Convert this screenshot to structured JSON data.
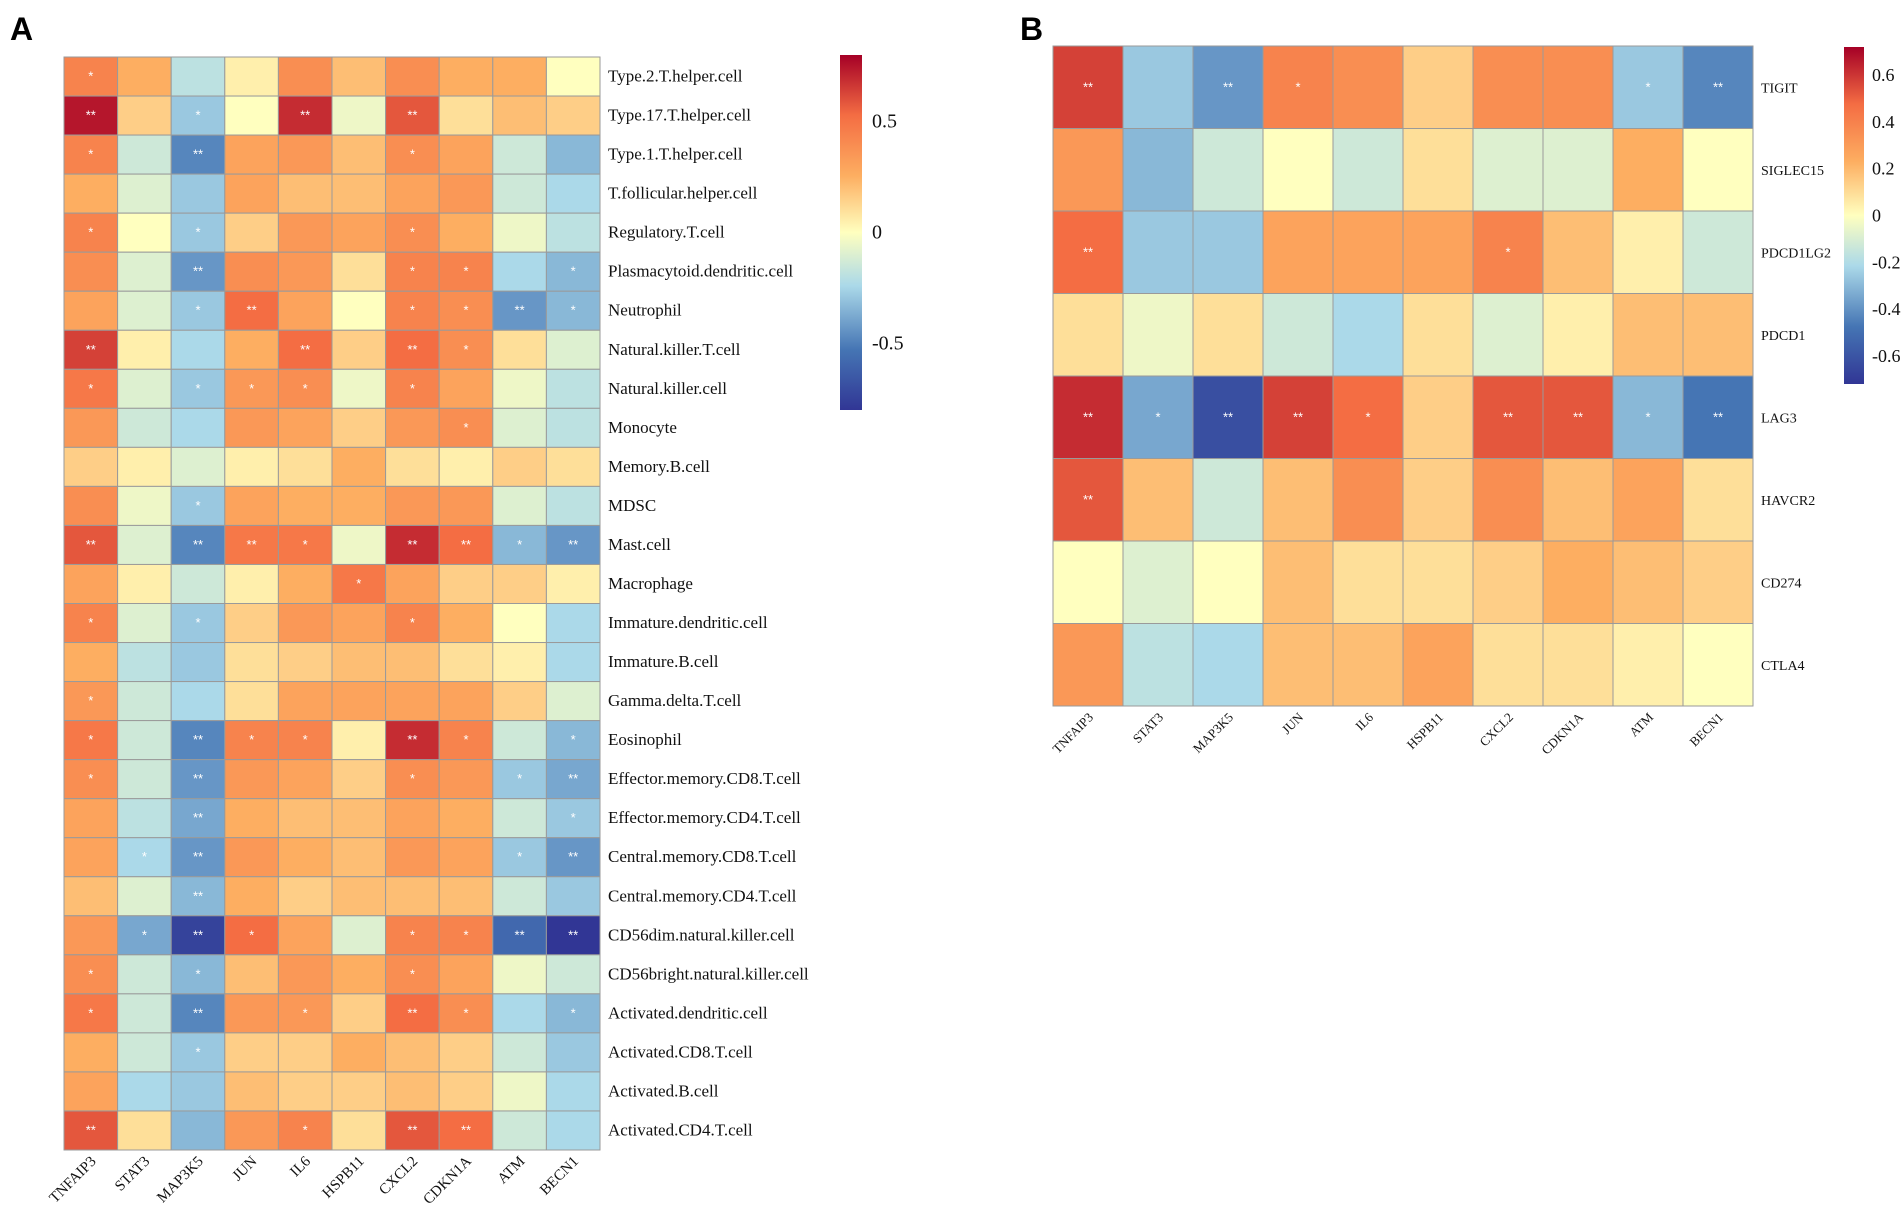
{
  "chart_data": [
    {
      "panel": "A",
      "type": "heatmap",
      "columns": [
        "TNFAIP3",
        "STAT3",
        "MAP3K5",
        "JUN",
        "IL6",
        "HSPB11",
        "CXCL2",
        "CDKN1A",
        "ATM",
        "BECN1"
      ],
      "rows": [
        "Type.2.T.helper.cell",
        "Type.17.T.helper.cell",
        "Type.1.T.helper.cell",
        "T.follicular.helper.cell",
        "Regulatory.T.cell",
        "Plasmacytoid.dendritic.cell",
        "Neutrophil",
        "Natural.killer.T.cell",
        "Natural.killer.cell",
        "Monocyte",
        "Memory.B.cell",
        "MDSC",
        "Mast.cell",
        "Macrophage",
        "Immature.dendritic.cell",
        "Immature.B.cell",
        "Gamma.delta.T.cell",
        "Eosinophil",
        "Effector.memory.CD8.T.cell",
        "Effector.memory.CD4.T.cell",
        "Central.memory.CD8.T.cell",
        "Central.memory.CD4.T.cell",
        "CD56dim.natural.killer.cell",
        "CD56bright.natural.killer.cell",
        "Activated.dendritic.cell",
        "Activated.CD8.T.cell",
        "Activated.B.cell",
        "Activated.CD4.T.cell"
      ],
      "values": [
        [
          0.45,
          0.25,
          -0.2,
          0.05,
          0.4,
          0.2,
          0.4,
          0.25,
          0.25,
          0.0
        ],
        [
          0.75,
          0.15,
          -0.3,
          0.0,
          0.7,
          -0.05,
          0.6,
          0.1,
          0.2,
          0.15
        ],
        [
          0.45,
          -0.15,
          -0.5,
          0.3,
          0.35,
          0.2,
          0.4,
          0.3,
          -0.15,
          -0.35
        ],
        [
          0.25,
          -0.1,
          -0.3,
          0.3,
          0.2,
          0.2,
          0.3,
          0.35,
          -0.15,
          -0.25
        ],
        [
          0.45,
          0.0,
          -0.3,
          0.15,
          0.35,
          0.3,
          0.4,
          0.25,
          -0.05,
          -0.2
        ],
        [
          0.4,
          -0.1,
          -0.45,
          0.4,
          0.35,
          0.1,
          0.45,
          0.45,
          -0.25,
          -0.35
        ],
        [
          0.3,
          -0.1,
          -0.3,
          0.55,
          0.3,
          0.0,
          0.45,
          0.4,
          -0.45,
          -0.35
        ],
        [
          0.65,
          0.05,
          -0.25,
          0.25,
          0.55,
          0.15,
          0.55,
          0.4,
          0.1,
          -0.1
        ],
        [
          0.5,
          -0.1,
          -0.3,
          0.35,
          0.4,
          -0.05,
          0.45,
          0.3,
          -0.05,
          -0.2
        ],
        [
          0.35,
          -0.15,
          -0.25,
          0.35,
          0.3,
          0.15,
          0.35,
          0.4,
          -0.1,
          -0.2
        ],
        [
          0.15,
          0.05,
          -0.1,
          0.05,
          0.1,
          0.25,
          0.1,
          0.05,
          0.15,
          0.1
        ],
        [
          0.4,
          -0.05,
          -0.3,
          0.3,
          0.25,
          0.25,
          0.35,
          0.35,
          -0.1,
          -0.2
        ],
        [
          0.6,
          -0.1,
          -0.5,
          0.5,
          0.5,
          -0.05,
          0.7,
          0.55,
          -0.35,
          -0.45
        ],
        [
          0.3,
          0.05,
          -0.15,
          0.05,
          0.25,
          0.5,
          0.3,
          0.15,
          0.15,
          0.05
        ],
        [
          0.45,
          -0.1,
          -0.3,
          0.15,
          0.35,
          0.3,
          0.45,
          0.25,
          0.0,
          -0.25
        ],
        [
          0.25,
          -0.2,
          -0.3,
          0.1,
          0.15,
          0.2,
          0.2,
          0.1,
          0.05,
          -0.25
        ],
        [
          0.35,
          -0.15,
          -0.25,
          0.1,
          0.3,
          0.3,
          0.3,
          0.3,
          0.15,
          -0.1
        ],
        [
          0.5,
          -0.15,
          -0.5,
          0.45,
          0.45,
          0.05,
          0.7,
          0.45,
          -0.15,
          -0.35
        ],
        [
          0.4,
          -0.15,
          -0.45,
          0.35,
          0.3,
          0.15,
          0.4,
          0.35,
          -0.3,
          -0.4
        ],
        [
          0.3,
          -0.2,
          -0.4,
          0.25,
          0.2,
          0.2,
          0.3,
          0.25,
          -0.15,
          -0.3
        ],
        [
          0.3,
          -0.25,
          -0.45,
          0.35,
          0.25,
          0.2,
          0.35,
          0.3,
          -0.3,
          -0.45
        ],
        [
          0.2,
          -0.1,
          -0.35,
          0.25,
          0.15,
          0.2,
          0.2,
          0.2,
          -0.15,
          -0.3
        ],
        [
          0.35,
          -0.4,
          -0.75,
          0.55,
          0.3,
          -0.1,
          0.45,
          0.45,
          -0.6,
          -0.8
        ],
        [
          0.4,
          -0.15,
          -0.35,
          0.2,
          0.35,
          0.25,
          0.4,
          0.3,
          -0.05,
          -0.15
        ],
        [
          0.5,
          -0.15,
          -0.5,
          0.35,
          0.35,
          0.15,
          0.55,
          0.4,
          -0.25,
          -0.35
        ],
        [
          0.25,
          -0.15,
          -0.3,
          0.15,
          0.15,
          0.25,
          0.2,
          0.15,
          -0.15,
          -0.3
        ],
        [
          0.3,
          -0.25,
          -0.3,
          0.2,
          0.15,
          0.15,
          0.2,
          0.15,
          -0.05,
          -0.25
        ],
        [
          0.6,
          0.1,
          -0.35,
          0.35,
          0.45,
          0.1,
          0.6,
          0.55,
          -0.15,
          -0.25
        ]
      ],
      "significance": [
        [
          "*",
          "",
          "",
          "",
          "",
          "",
          "",
          "",
          "",
          ""
        ],
        [
          "**",
          "",
          "*",
          "",
          "**",
          "",
          "**",
          "",
          "",
          ""
        ],
        [
          "*",
          "",
          "**",
          "",
          "",
          "",
          "*",
          "",
          "",
          ""
        ],
        [
          "",
          "",
          "",
          "",
          "",
          "",
          "",
          "",
          "",
          ""
        ],
        [
          "*",
          "",
          "*",
          "",
          "",
          "",
          "*",
          "",
          "",
          ""
        ],
        [
          "",
          "",
          "**",
          "",
          "",
          "",
          "*",
          "*",
          "",
          "*"
        ],
        [
          "",
          "",
          "*",
          "**",
          "",
          "",
          "*",
          "*",
          "**",
          "*"
        ],
        [
          "**",
          "",
          "",
          "",
          "**",
          "",
          "**",
          "*",
          "",
          ""
        ],
        [
          "*",
          "",
          "*",
          "*",
          "*",
          "",
          "*",
          "",
          "",
          ""
        ],
        [
          "",
          "",
          "",
          "",
          "",
          "",
          "",
          "*",
          "",
          ""
        ],
        [
          "",
          "",
          "",
          "",
          "",
          "",
          "",
          "",
          "",
          ""
        ],
        [
          "",
          "",
          "*",
          "",
          "",
          "",
          "",
          "",
          "",
          ""
        ],
        [
          "**",
          "",
          "**",
          "**",
          "*",
          "",
          "**",
          "**",
          "*",
          "**"
        ],
        [
          "",
          "",
          "",
          "",
          "",
          "*",
          "",
          "",
          "",
          ""
        ],
        [
          "*",
          "",
          "*",
          "",
          "",
          "",
          "*",
          "",
          "",
          ""
        ],
        [
          "",
          "",
          "",
          "",
          "",
          "",
          "",
          "",
          "",
          ""
        ],
        [
          "*",
          "",
          "",
          "",
          "",
          "",
          "",
          "",
          "",
          ""
        ],
        [
          "*",
          "",
          "**",
          "*",
          "*",
          "",
          "**",
          "*",
          "",
          "*"
        ],
        [
          "*",
          "",
          "**",
          "",
          "",
          "",
          "*",
          "",
          "*",
          "**"
        ],
        [
          "",
          "",
          "**",
          "",
          "",
          "",
          "",
          "",
          "",
          "*"
        ],
        [
          "",
          "*",
          "**",
          "",
          "",
          "",
          "",
          "",
          "*",
          "**"
        ],
        [
          "",
          "",
          "**",
          "",
          "",
          "",
          "",
          "",
          "",
          ""
        ],
        [
          "",
          "*",
          "**",
          "*",
          "",
          "",
          "*",
          "*",
          "**",
          "**"
        ],
        [
          "*",
          "",
          "*",
          "",
          "",
          "",
          "*",
          "",
          "",
          ""
        ],
        [
          "*",
          "",
          "**",
          "",
          "*",
          "",
          "**",
          "*",
          "",
          "*"
        ],
        [
          "",
          "",
          "*",
          "",
          "",
          "",
          "",
          "",
          "",
          ""
        ],
        [
          "",
          "",
          "",
          "",
          "",
          "",
          "",
          "",
          "",
          ""
        ],
        [
          "**",
          "",
          "",
          "",
          "*",
          "",
          "**",
          "**",
          "",
          ""
        ]
      ],
      "colorbar": {
        "range": [
          -0.8,
          0.8
        ],
        "ticks": [
          0.5,
          0,
          -0.5
        ],
        "tick_labels": [
          "0.5",
          "0",
          "-0.5"
        ]
      }
    },
    {
      "panel": "B",
      "type": "heatmap",
      "columns": [
        "TNFAIP3",
        "STAT3",
        "MAP3K5",
        "JUN",
        "IL6",
        "HSPB11",
        "CXCL2",
        "CDKN1A",
        "ATM",
        "BECN1"
      ],
      "rows": [
        "TIGIT",
        "SIGLEC15",
        "PDCD1LG2",
        "PDCD1",
        "LAG3",
        "HAVCR2",
        "CD274",
        "CTLA4"
      ],
      "values": [
        [
          0.65,
          -0.3,
          -0.45,
          0.45,
          0.4,
          0.15,
          0.4,
          0.4,
          -0.3,
          -0.5
        ],
        [
          0.35,
          -0.35,
          -0.15,
          0.0,
          -0.15,
          0.1,
          -0.1,
          -0.1,
          0.25,
          0.0
        ],
        [
          0.55,
          -0.3,
          -0.3,
          0.3,
          0.3,
          0.3,
          0.45,
          0.2,
          0.05,
          -0.15
        ],
        [
          0.1,
          -0.05,
          0.1,
          -0.15,
          -0.25,
          0.1,
          -0.1,
          0.05,
          0.2,
          0.2
        ],
        [
          0.7,
          -0.4,
          -0.7,
          0.65,
          0.55,
          0.15,
          0.6,
          0.6,
          -0.35,
          -0.55
        ],
        [
          0.6,
          0.2,
          -0.15,
          0.2,
          0.4,
          0.15,
          0.4,
          0.2,
          0.3,
          0.1
        ],
        [
          0.0,
          -0.1,
          0.0,
          0.2,
          0.1,
          0.1,
          0.15,
          0.25,
          0.2,
          0.15
        ],
        [
          0.35,
          -0.2,
          -0.25,
          0.2,
          0.2,
          0.3,
          0.1,
          0.1,
          0.05,
          0.0
        ]
      ],
      "significance": [
        [
          "**",
          "",
          "**",
          "*",
          "",
          "",
          "",
          "",
          "*",
          "**"
        ],
        [
          "",
          "",
          "",
          "",
          "",
          "",
          "",
          "",
          "",
          ""
        ],
        [
          "**",
          "",
          "",
          "",
          "",
          "",
          "*",
          "",
          "",
          ""
        ],
        [
          "",
          "",
          "",
          "",
          "",
          "",
          "",
          "",
          "",
          ""
        ],
        [
          "**",
          "*",
          "**",
          "**",
          "*",
          "",
          "**",
          "**",
          "*",
          "**"
        ],
        [
          "**",
          "",
          "",
          "",
          "",
          "",
          "",
          "",
          "",
          ""
        ],
        [
          "",
          "",
          "",
          "",
          "",
          "",
          "",
          "",
          "",
          ""
        ],
        [
          "",
          "",
          "",
          "",
          "",
          "",
          "",
          "",
          "",
          ""
        ]
      ],
      "colorbar": {
        "range": [
          -0.72,
          0.72
        ],
        "ticks": [
          0.6,
          0.4,
          0.2,
          0,
          -0.2,
          -0.4,
          -0.6
        ],
        "tick_labels": [
          "0.6",
          "0.4",
          "0.2",
          "0",
          "-0.2",
          "-0.4",
          "-0.6"
        ]
      }
    }
  ],
  "colors": {
    "low": "#313695",
    "mid_low": "#4575b4",
    "light_blue": "#abd9e9",
    "neutral": "#ffffbf",
    "light_orange": "#fdae61",
    "mid_high": "#f46d43",
    "high": "#a50026",
    "grid": "#9a9a9a",
    "star": "#ffffff"
  },
  "labels": {
    "panel_a": "A",
    "panel_b": "B"
  }
}
